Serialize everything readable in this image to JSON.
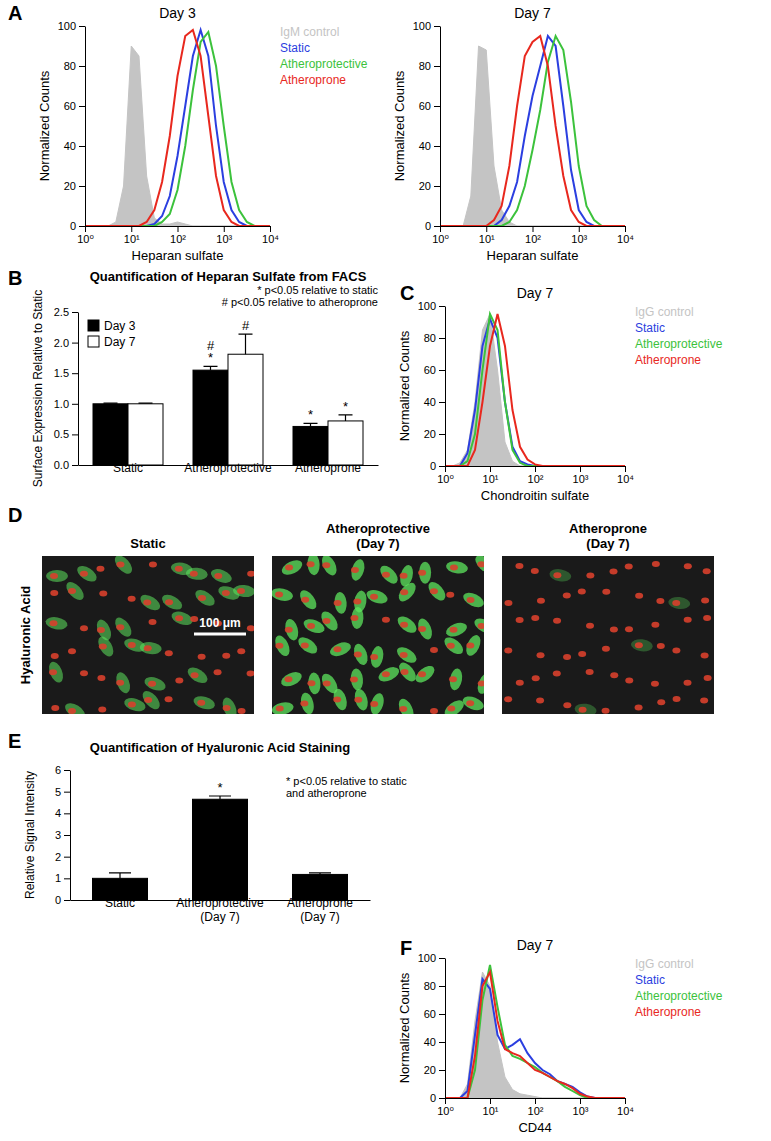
{
  "chart_data": [
    {
      "type": "line",
      "panel": "A",
      "title": "Day 3",
      "x_label": "Heparan sulfate",
      "y_label": "Normalized Counts",
      "log": "x",
      "legend": "right",
      "xlim": [
        1,
        10000
      ],
      "ylim": [
        0,
        100
      ],
      "xticks": [
        {
          "value": 1,
          "label": "10⁰"
        },
        {
          "value": 10,
          "label": "10¹"
        },
        {
          "value": 100,
          "label": "10²"
        },
        {
          "value": 1000,
          "label": "10³"
        },
        {
          "value": 10000,
          "label": "10⁴"
        }
      ],
      "yticks": [
        0,
        20,
        40,
        60,
        80,
        100
      ],
      "x": [
        1,
        1.47,
        2.15,
        3.16,
        4.64,
        6.81,
        10,
        14.7,
        21.5,
        31.6,
        46.4,
        68.1,
        100,
        147,
        215,
        316,
        464,
        681,
        1000,
        1470,
        2150,
        3160,
        4640,
        6810,
        10000
      ],
      "series": [
        {
          "name": "IgM control",
          "color": "#c4c4c4",
          "type": "area",
          "values": [
            0,
            0,
            0,
            0,
            2,
            20,
            90,
            85,
            25,
            4,
            1,
            1,
            2,
            1,
            0,
            0,
            0,
            0,
            0,
            0,
            0,
            0,
            0,
            0,
            0
          ]
        },
        {
          "name": "Static",
          "color": "#2b3fe0",
          "values": [
            0,
            0,
            0,
            0,
            0,
            0,
            0,
            0,
            0,
            1,
            5,
            15,
            35,
            60,
            85,
            98,
            85,
            50,
            22,
            8,
            2,
            0,
            0,
            0,
            0
          ]
        },
        {
          "name": "Atheroprotective",
          "color": "#3cc23c",
          "values": [
            0,
            0,
            0,
            0,
            0,
            0,
            0,
            0,
            0,
            0,
            2,
            6,
            18,
            40,
            68,
            92,
            97,
            80,
            50,
            22,
            8,
            2,
            0,
            0,
            0
          ]
        },
        {
          "name": "Atheroprone",
          "color": "#e8281e",
          "values": [
            0,
            0,
            0,
            0,
            0,
            0,
            0,
            0,
            2,
            8,
            22,
            45,
            75,
            95,
            98,
            85,
            55,
            25,
            8,
            2,
            0,
            0,
            0,
            0,
            0
          ]
        }
      ]
    },
    {
      "type": "line",
      "title": "Day 7",
      "x_label": "Heparan sulfate",
      "y_label": "Normalized Counts",
      "log": "x",
      "xlim": [
        1,
        10000
      ],
      "ylim": [
        0,
        100
      ],
      "xticks": [
        {
          "value": 1,
          "label": "10⁰"
        },
        {
          "value": 10,
          "label": "10¹"
        },
        {
          "value": 100,
          "label": "10²"
        },
        {
          "value": 1000,
          "label": "10³"
        },
        {
          "value": 10000,
          "label": "10⁴"
        }
      ],
      "yticks": [
        0,
        20,
        40,
        60,
        80,
        100
      ],
      "x": [
        1,
        1.47,
        2.15,
        3.16,
        4.64,
        6.81,
        10,
        14.7,
        21.5,
        31.6,
        46.4,
        68.1,
        100,
        147,
        215,
        316,
        464,
        681,
        1000,
        1470,
        2150,
        3160,
        4640,
        6810,
        10000
      ],
      "series": [
        {
          "color": "#c4c4c4",
          "type": "area",
          "values": [
            0,
            0,
            0,
            0,
            15,
            90,
            88,
            30,
            8,
            2,
            0,
            0,
            0,
            0,
            0,
            0,
            0,
            0,
            0,
            0,
            0,
            0,
            0,
            0,
            0
          ]
        },
        {
          "color": "#2b3fe0",
          "values": [
            0,
            0,
            0,
            0,
            0,
            0,
            0,
            0,
            3,
            10,
            22,
            45,
            65,
            80,
            95,
            90,
            60,
            28,
            8,
            2,
            0,
            0,
            0,
            0,
            0
          ]
        },
        {
          "color": "#3cc23c",
          "values": [
            0,
            0,
            0,
            0,
            0,
            0,
            0,
            0,
            0,
            2,
            8,
            20,
            38,
            58,
            82,
            95,
            88,
            62,
            30,
            10,
            3,
            0,
            0,
            0,
            0
          ]
        },
        {
          "color": "#e8281e",
          "values": [
            0,
            0,
            0,
            0,
            0,
            0,
            0,
            3,
            10,
            30,
            60,
            85,
            92,
            95,
            80,
            50,
            25,
            8,
            2,
            0,
            0,
            0,
            0,
            0,
            0
          ]
        }
      ]
    },
    {
      "type": "bar",
      "panel": "B",
      "title": "Quantification of Heparan Sulfate from FACS",
      "y_label": "Surface Expression Relative to Static",
      "legend": "upper left",
      "categories": [
        "Static",
        "Atheroprotective",
        "Atheroprone"
      ],
      "ylim": [
        0,
        2.5
      ],
      "yticks": [
        {
          "value": 0,
          "label": "0.0"
        },
        {
          "value": 0.5,
          "label": "0.5"
        },
        {
          "value": 1,
          "label": "1.0"
        },
        {
          "value": 1.5,
          "label": "1.5"
        },
        {
          "value": 2,
          "label": "2.0"
        },
        {
          "value": 2.5,
          "label": "2.5"
        }
      ],
      "annotations": [
        "* p<0.05 relative to static",
        "# p<0.05 relative to atheroprone"
      ],
      "series": [
        {
          "name": "Day 3",
          "color": "#000000",
          "values": [
            1.0,
            1.55,
            0.63
          ],
          "errors": [
            0.01,
            0.06,
            0.05
          ],
          "significance": [
            [],
            [
              "#",
              "*"
            ],
            [
              "*"
            ]
          ]
        },
        {
          "name": "Day 7",
          "color": "#ffffff",
          "values": [
            1.0,
            1.81,
            0.72
          ],
          "errors": [
            0.01,
            0.33,
            0.1
          ],
          "significance": [
            [],
            [
              "#"
            ],
            [
              "*"
            ]
          ]
        }
      ]
    },
    {
      "type": "line",
      "panel": "C",
      "title": "Day 7",
      "x_label": "Chondroitin sulfate",
      "y_label": "Normalized Counts",
      "log": "x",
      "legend": "right",
      "xlim": [
        1,
        10000
      ],
      "ylim": [
        0,
        100
      ],
      "xticks": [
        {
          "value": 1,
          "label": "10⁰"
        },
        {
          "value": 10,
          "label": "10¹"
        },
        {
          "value": 100,
          "label": "10²"
        },
        {
          "value": 1000,
          "label": "10³"
        },
        {
          "value": 10000,
          "label": "10⁴"
        }
      ],
      "yticks": [
        0,
        20,
        40,
        60,
        80,
        100
      ],
      "x": [
        1,
        1.47,
        2.15,
        3.16,
        4.64,
        6.81,
        10,
        14.7,
        21.5,
        31.6,
        46.4,
        68.1,
        100,
        147,
        215,
        316,
        464,
        681,
        1000,
        1470,
        2150,
        3160,
        4640,
        6810,
        10000
      ],
      "series": [
        {
          "name": "IgG control",
          "color": "#c4c4c4",
          "type": "area",
          "values": [
            0,
            0,
            2,
            10,
            40,
            85,
            95,
            60,
            15,
            3,
            0,
            0,
            0,
            0,
            0,
            0,
            0,
            0,
            0,
            0,
            0,
            0,
            0,
            0,
            0
          ]
        },
        {
          "name": "Static",
          "color": "#2b3fe0",
          "values": [
            0,
            0,
            0,
            8,
            35,
            75,
            92,
            80,
            40,
            12,
            3,
            1,
            0,
            0,
            0,
            0,
            0,
            0,
            0,
            0,
            0,
            0,
            0,
            0,
            0
          ]
        },
        {
          "name": "Atheroprotective",
          "color": "#3cc23c",
          "values": [
            0,
            0,
            0,
            3,
            20,
            60,
            95,
            85,
            40,
            10,
            2,
            0,
            0,
            0,
            0,
            0,
            0,
            0,
            0,
            0,
            0,
            0,
            0,
            0,
            0
          ]
        },
        {
          "name": "Atheroprone",
          "color": "#e8281e",
          "values": [
            0,
            0,
            0,
            0,
            10,
            40,
            75,
            95,
            75,
            35,
            12,
            4,
            1,
            0,
            0,
            0,
            0,
            0,
            0,
            0,
            0,
            0,
            0,
            0,
            0
          ]
        }
      ]
    },
    {
      "type": "image",
      "panel": "D",
      "row_label": "Hyaluronic Acid",
      "titles": [
        [
          "Static"
        ],
        [
          "Atheroprotective",
          "(Day 7)"
        ],
        [
          "Atheroprone",
          "(Day 7)"
        ]
      ],
      "scale_bar": "100 μm"
    },
    {
      "type": "bar",
      "panel": "E",
      "title": "Quantification of Hyaluronic Acid Staining",
      "y_label": "Relative Signal Intensity",
      "categories": [
        "Static",
        "Atheroprotective\n(Day 7)",
        "Atheroprone\n(Day 7)"
      ],
      "ylim": [
        0,
        6
      ],
      "yticks": [
        0,
        1,
        2,
        3,
        4,
        5,
        6
      ],
      "annotations": [
        "* p<0.05 relative to static",
        "and atheroprone"
      ],
      "series": [
        {
          "color": "#000000",
          "values": [
            1.0,
            4.65,
            1.18
          ],
          "errors": [
            0.25,
            0.15,
            0.07
          ],
          "significance": [
            [],
            [
              "*"
            ],
            []
          ]
        }
      ]
    },
    {
      "type": "line",
      "panel": "F",
      "title": "Day 7",
      "x_label": "CD44",
      "y_label": "Normalized Counts",
      "log": "x",
      "legend": "right",
      "xlim": [
        1,
        10000
      ],
      "ylim": [
        0,
        100
      ],
      "xticks": [
        {
          "value": 1,
          "label": "10⁰"
        },
        {
          "value": 10,
          "label": "10¹"
        },
        {
          "value": 100,
          "label": "10²"
        },
        {
          "value": 1000,
          "label": "10³"
        },
        {
          "value": 10000,
          "label": "10⁴"
        }
      ],
      "yticks": [
        0,
        20,
        40,
        60,
        80,
        100
      ],
      "x": [
        1,
        1.47,
        2.15,
        3.16,
        4.64,
        6.81,
        10,
        14.7,
        21.5,
        31.6,
        46.4,
        68.1,
        100,
        147,
        215,
        316,
        464,
        681,
        1000,
        1470,
        2150,
        3160,
        4640,
        6810,
        10000
      ],
      "series": [
        {
          "name": "IgG control",
          "color": "#c4c4c4",
          "type": "area",
          "values": [
            0,
            0,
            0,
            10,
            55,
            90,
            80,
            40,
            15,
            6,
            3,
            2,
            1,
            0,
            0,
            0,
            0,
            0,
            0,
            0,
            0,
            0,
            0,
            0,
            0
          ]
        },
        {
          "name": "Static",
          "color": "#2b3fe0",
          "values": [
            0,
            0,
            0,
            5,
            45,
            85,
            78,
            45,
            35,
            38,
            42,
            32,
            25,
            20,
            17,
            12,
            10,
            8,
            4,
            1,
            0,
            0,
            0,
            0,
            0
          ]
        },
        {
          "name": "Atheroprotective",
          "color": "#3cc23c",
          "values": [
            0,
            0,
            0,
            0,
            20,
            70,
            95,
            65,
            38,
            30,
            28,
            25,
            22,
            18,
            15,
            12,
            8,
            5,
            2,
            0,
            0,
            0,
            0,
            0,
            0
          ]
        },
        {
          "name": "Atheroprone",
          "color": "#e8281e",
          "values": [
            0,
            0,
            0,
            0,
            30,
            80,
            90,
            55,
            35,
            32,
            30,
            25,
            20,
            18,
            15,
            12,
            10,
            7,
            3,
            1,
            0,
            0,
            0,
            0,
            0
          ]
        }
      ]
    }
  ]
}
